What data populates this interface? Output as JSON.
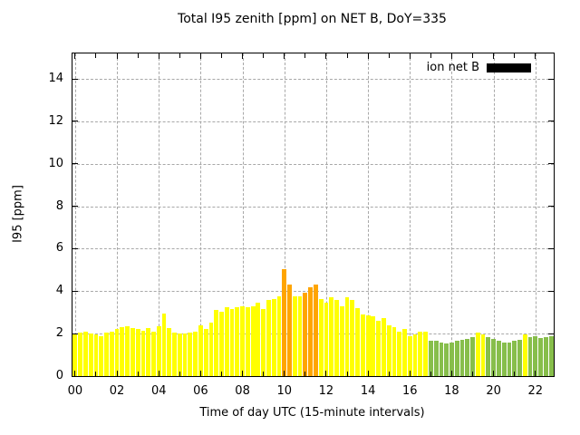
{
  "title": "Total I95 zenith [ppm] on NET B, DoY=335",
  "legend": {
    "label": "ion net B",
    "swatch_color": "#000000"
  },
  "chart_data": {
    "type": "bar",
    "title": "Total I95 zenith [ppm] on NET B, DoY=335",
    "xlabel": "Time of day UTC (15-minute intervals)",
    "ylabel": "I95 [ppm]",
    "interval_minutes": 15,
    "xlim": [
      -0.125,
      22.875
    ],
    "ylim": [
      0,
      15.2
    ],
    "grid": true,
    "legend_position": "top-right-inside",
    "x_tick_hours": [
      0,
      2,
      4,
      6,
      8,
      10,
      12,
      14,
      16,
      18,
      20,
      22
    ],
    "x_tick_labels": [
      "00",
      "02",
      "04",
      "06",
      "08",
      "10",
      "12",
      "14",
      "16",
      "18",
      "20",
      "22"
    ],
    "x_minor_tick_hours": [
      1,
      3,
      5,
      7,
      9,
      11,
      13,
      15,
      17,
      19,
      21
    ],
    "y_ticks": [
      0,
      2,
      4,
      6,
      8,
      10,
      12,
      14
    ],
    "colors": {
      "y": "#FFFF00",
      "o": "#FFA500",
      "g": "#87BE4B",
      "grid": "#a8a8a8",
      "frame": "#000000",
      "background": "#ffffff"
    },
    "bars": {
      "times": [
        "00:00",
        "00:15",
        "00:30",
        "00:45",
        "01:00",
        "01:15",
        "01:30",
        "01:45",
        "02:00",
        "02:15",
        "02:30",
        "02:45",
        "03:00",
        "03:15",
        "03:30",
        "03:45",
        "04:00",
        "04:15",
        "04:30",
        "04:45",
        "05:00",
        "05:15",
        "05:30",
        "05:45",
        "06:00",
        "06:15",
        "06:30",
        "06:45",
        "07:00",
        "07:15",
        "07:30",
        "07:45",
        "08:00",
        "08:15",
        "08:30",
        "08:45",
        "09:00",
        "09:15",
        "09:30",
        "09:45",
        "10:00",
        "10:15",
        "10:30",
        "10:45",
        "11:00",
        "11:15",
        "11:30",
        "11:45",
        "12:00",
        "12:15",
        "12:30",
        "12:45",
        "13:00",
        "13:15",
        "13:30",
        "13:45",
        "14:00",
        "14:15",
        "14:30",
        "14:45",
        "15:00",
        "15:15",
        "15:30",
        "15:45",
        "16:00",
        "16:15",
        "16:30",
        "16:45",
        "17:00",
        "17:15",
        "17:30",
        "17:45",
        "18:00",
        "18:15",
        "18:30",
        "18:45",
        "19:00",
        "19:15",
        "19:30",
        "19:45",
        "20:00",
        "20:15",
        "20:30",
        "20:45",
        "21:00",
        "21:15",
        "21:30",
        "21:45",
        "22:00",
        "22:15",
        "22:30",
        "22:45"
      ],
      "values": [
        1.95,
        2.05,
        2.1,
        2.0,
        1.95,
        1.9,
        2.05,
        2.1,
        2.2,
        2.3,
        2.35,
        2.25,
        2.2,
        2.15,
        2.25,
        2.1,
        2.35,
        2.95,
        2.25,
        2.05,
        2.0,
        2.0,
        2.05,
        2.1,
        2.4,
        2.2,
        2.5,
        3.1,
        3.05,
        3.25,
        3.15,
        3.25,
        3.3,
        3.25,
        3.3,
        3.45,
        3.15,
        3.6,
        3.65,
        3.75,
        5.05,
        4.3,
        3.75,
        3.75,
        3.95,
        4.2,
        4.3,
        3.65,
        3.45,
        3.7,
        3.6,
        3.3,
        3.7,
        3.6,
        3.2,
        2.9,
        2.85,
        2.8,
        2.6,
        2.75,
        2.4,
        2.3,
        2.1,
        2.2,
        1.9,
        1.95,
        2.1,
        2.1,
        1.65,
        1.65,
        1.6,
        1.55,
        1.6,
        1.65,
        1.7,
        1.75,
        1.85,
        2.05,
        1.95,
        1.85,
        1.75,
        1.65,
        1.6,
        1.6,
        1.65,
        1.7,
        1.95,
        1.85,
        1.9,
        1.8,
        1.85,
        1.9
      ],
      "color_keys": "yyyyyyyyyyyyyyyyyyyyyyyyyyyyyyyyyyyyyyyyooyyoooyyyyyyyyyyyyyyyyyyyyygggggggggyygggggggyggggg"
    }
  }
}
